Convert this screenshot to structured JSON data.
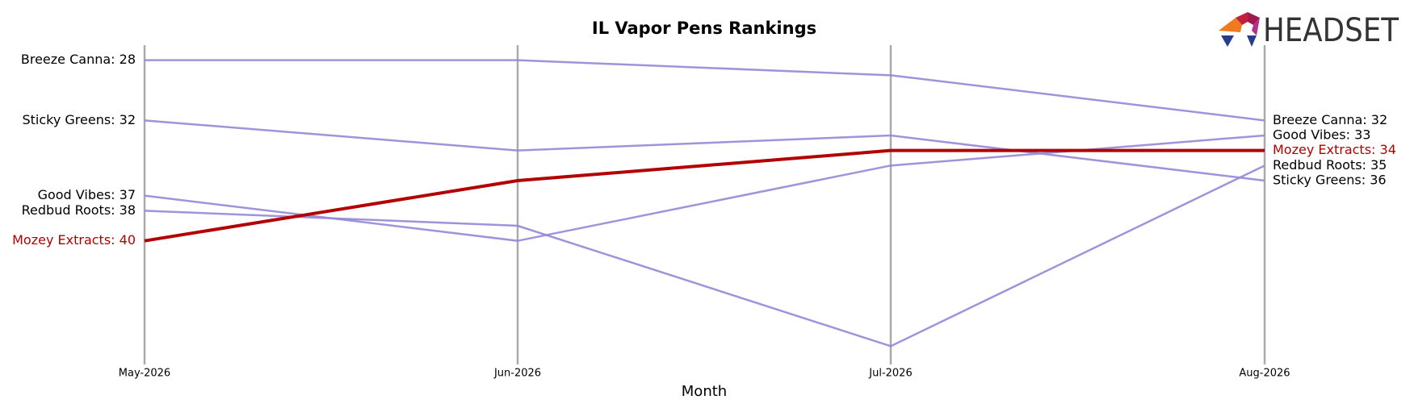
{
  "chart_data": {
    "type": "bump",
    "title": "IL Vapor Pens Rankings",
    "x_label": "Month",
    "logo": "HEADSET",
    "categories": [
      "May-2026",
      "Jun-2026",
      "Jul-2026",
      "Aug-2026"
    ],
    "ylim": [
      48,
      27
    ],
    "series": [
      {
        "name": "Breeze Canna",
        "color": "#9388d8",
        "values": [
          28,
          28,
          29,
          32
        ],
        "value_labels": [
          "Breeze Canna: 28",
          null,
          null,
          "Breeze Canna: 32"
        ]
      },
      {
        "name": "Sticky Greens",
        "color": "#9388d8",
        "values": [
          32,
          34,
          33,
          36
        ],
        "value_labels": [
          "Sticky Greens: 32",
          null,
          null,
          "Sticky Greens: 36"
        ]
      },
      {
        "name": "Good Vibes",
        "color": "#9388d8",
        "values": [
          37,
          40,
          35,
          33
        ],
        "value_labels": [
          "Good Vibes: 37",
          null,
          null,
          "Good Vibes: 33"
        ]
      },
      {
        "name": "Redbud Roots",
        "color": "#9388d8",
        "values": [
          38,
          39,
          47,
          35
        ],
        "value_labels": [
          "Redbud Roots: 38",
          null,
          null,
          "Redbud Roots: 35"
        ]
      },
      {
        "name": "Mozey Extracts",
        "color": "#b30000",
        "highlight": true,
        "values": [
          40,
          36,
          34,
          34
        ],
        "value_labels": [
          "Mozey Extracts: 40",
          null,
          null,
          "Mozey Extracts: 34"
        ]
      }
    ]
  }
}
